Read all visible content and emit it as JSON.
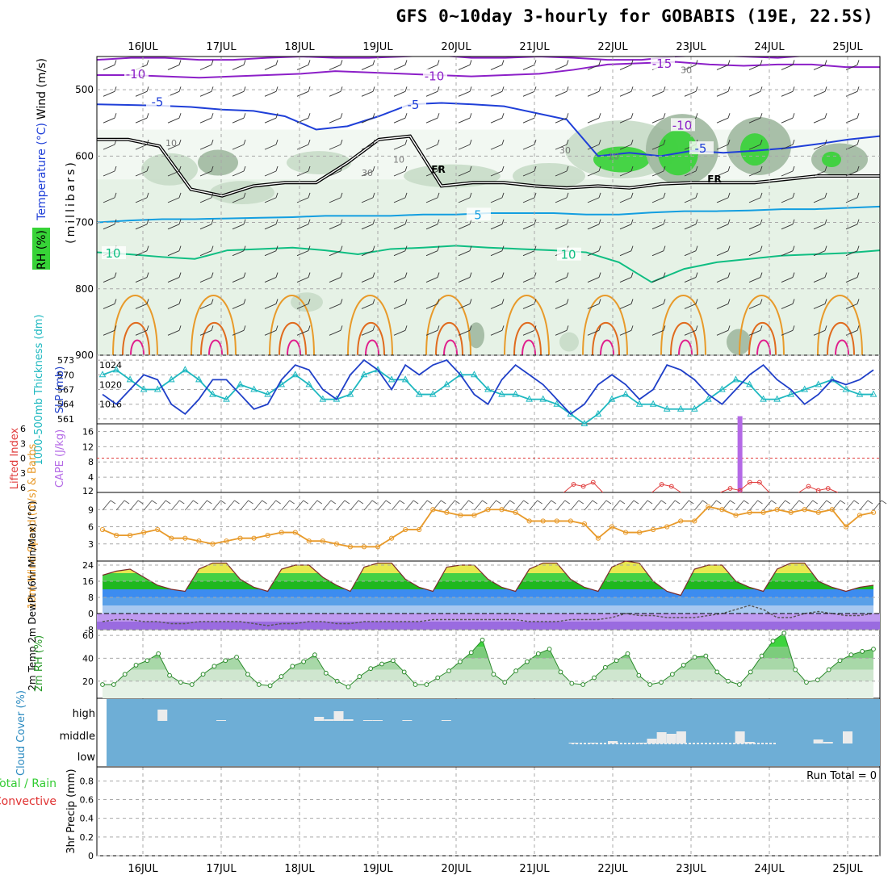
{
  "title": "GFS 0~10day 3-hourly for GOBABIS (19E, 22.5S)",
  "colors": {
    "grid": "#a8a8a8",
    "rh_light": "#e6f2e6",
    "rh_mid": "#c8dcc8",
    "rh_dark": "#a0b8a0",
    "rh_green": "#37d337",
    "temp_purple": "#8c1fc8",
    "temp_blue": "#1f3fd8",
    "temp_cyan": "#139ee0",
    "temp_teal": "#0fbe82",
    "temp_orange": "#e89a2a",
    "temp_dark_orange": "#e06b1e",
    "temp_pink": "#e01e8c",
    "freezing": "#000000",
    "slp": "#1f3fc8",
    "thickness": "#1fb8c0",
    "cape": "#b469e6",
    "lifted_index": "#e03c3c",
    "wind_speed": "#e89a2a",
    "cloud_bg": "#6eaed6",
    "cloud_bars": "#ececec",
    "precip_total": "#33cc33",
    "precip_conv": "#e03030"
  },
  "chart_data": [
    {
      "panel": "vertical-profile",
      "type": "heatmap",
      "x_labels": [
        "16JUL",
        "17JUL",
        "18JUL",
        "19JUL",
        "20JUL",
        "21JUL",
        "22JUL",
        "23JUL",
        "24JUL",
        "25JUL"
      ],
      "y_axis_label": "(millibars)",
      "y_ticks": [
        500,
        600,
        700,
        800,
        900
      ],
      "ylim": [
        450,
        900
      ],
      "legend_labels": [
        "Wind (m/s)",
        "Temperature (°C)",
        "RH (%)"
      ],
      "isotherm_labels": [
        "-15",
        "-10",
        "-10",
        "-10",
        "-5",
        "-5",
        "-5",
        "5",
        "10",
        "10"
      ],
      "rh_labels": [
        "30",
        "10",
        "30",
        "10",
        "10",
        "30"
      ],
      "freezing_labels": [
        "FR",
        "FR"
      ],
      "freezing_level": [
        575,
        575,
        585,
        650,
        660,
        645,
        640,
        640,
        610,
        575,
        570,
        645,
        640,
        640,
        645,
        648,
        645,
        648,
        642,
        640,
        640,
        640,
        635,
        630,
        630,
        630
      ]
    },
    {
      "panel": "slp-thickness",
      "type": "line",
      "y_left_label": "1000-500mb Thickness (dm)",
      "y_left_ticks": [
        561,
        564,
        567,
        570,
        573
      ],
      "y_right_label": "SLP (mb)",
      "y_right_ticks": [
        1016,
        1020,
        1024
      ],
      "series": [
        {
          "name": "SLP (mb)",
          "values": [
            1018,
            1016,
            1019,
            1022,
            1021,
            1016,
            1014,
            1017,
            1021,
            1021,
            1018,
            1015,
            1016,
            1021,
            1024,
            1023,
            1019,
            1017,
            1022,
            1025,
            1023,
            1019,
            1024,
            1022,
            1024,
            1025,
            1022,
            1018,
            1016,
            1021,
            1024,
            1022,
            1020,
            1017,
            1014,
            1016,
            1020,
            1022,
            1020,
            1017,
            1019,
            1024,
            1023,
            1021,
            1018,
            1016,
            1019,
            1022,
            1024,
            1021,
            1019,
            1016,
            1018,
            1021,
            1020,
            1021,
            1023
          ]
        },
        {
          "name": "1000-500mb Thickness (dm)",
          "values": [
            570,
            571,
            569,
            567,
            567,
            569,
            571,
            569,
            566,
            565,
            568,
            567,
            566,
            568,
            570,
            568,
            565,
            565,
            566,
            570,
            571,
            569,
            569,
            566,
            566,
            568,
            570,
            570,
            567,
            566,
            566,
            565,
            565,
            564,
            562,
            560,
            562,
            565,
            566,
            564,
            564,
            563,
            563,
            563,
            565,
            567,
            569,
            568,
            565,
            565,
            566,
            567,
            568,
            569,
            567,
            566,
            566
          ]
        }
      ]
    },
    {
      "panel": "cape-lifted-index",
      "type": "bar",
      "y_left_label": "Lifted Index",
      "y_left_ticks": [
        "6",
        "3",
        "0",
        "3",
        "6"
      ],
      "y_right_label": "CAPE (J/kg)",
      "y_right_ticks": [
        4,
        8,
        12,
        16
      ],
      "series": [
        {
          "name": "CAPE (J/kg)",
          "points": [
            {
              "x": "23JUL 15Z",
              "value": 20
            }
          ]
        },
        {
          "name": "Lifted Index",
          "points": [
            {
              "x": "21JUL 12Z",
              "value": 4
            },
            {
              "x": "21JUL 15Z",
              "value": 3
            },
            {
              "x": "21JUL 18Z",
              "value": 5
            },
            {
              "x": "22JUL 15Z",
              "value": 4
            },
            {
              "x": "22JUL 18Z",
              "value": 3
            },
            {
              "x": "23JUL 12Z",
              "value": 2
            },
            {
              "x": "23JUL 15Z",
              "value": 1
            },
            {
              "x": "23JUL 18Z",
              "value": 5
            },
            {
              "x": "23JUL 21Z",
              "value": 5
            },
            {
              "x": "24JUL 12Z",
              "value": 3
            },
            {
              "x": "24JUL 15Z",
              "value": 1
            },
            {
              "x": "24JUL 18Z",
              "value": 2
            }
          ]
        }
      ]
    },
    {
      "panel": "wind-10m",
      "type": "line",
      "y_left_label": "10m Wind Speed (m/s) & Barbs",
      "y_ticks": [
        3,
        6,
        9
      ],
      "series": [
        {
          "name": "10m Wind Speed",
          "values": [
            5.5,
            4.5,
            4.5,
            5,
            5.5,
            4,
            4,
            3.5,
            3,
            3.5,
            4,
            4,
            4.5,
            5,
            5,
            3.5,
            3.5,
            3,
            2.5,
            2.5,
            2.5,
            4,
            5.5,
            5.5,
            9,
            8.5,
            8,
            8,
            9,
            9,
            8.5,
            7,
            7,
            7,
            7,
            6.5,
            4,
            6,
            5,
            5,
            5.5,
            6,
            7,
            7,
            9.5,
            9,
            8,
            8.5,
            8.5,
            9,
            8.5,
            9,
            8.5,
            9,
            6,
            8,
            8.5
          ]
        }
      ]
    },
    {
      "panel": "temperature-2m",
      "type": "area",
      "y_left_label": "2m Temp 2m DewPt (6hr Min/Max) (°C)",
      "y_ticks": [
        -8,
        0,
        8,
        16,
        24
      ],
      "series": [
        {
          "name": "2m Temp",
          "values": [
            19,
            21,
            22,
            18,
            14,
            12,
            11,
            22,
            25,
            25,
            17,
            13,
            11,
            22,
            24,
            24,
            18,
            14,
            11,
            23,
            25,
            25,
            17,
            13,
            11,
            23,
            24,
            24,
            17,
            13,
            11,
            22,
            25,
            25,
            17,
            13,
            11,
            23,
            26,
            25,
            16,
            11,
            9,
            22,
            24,
            24,
            16,
            13,
            11,
            22,
            25,
            25,
            16,
            13,
            11,
            13,
            14
          ]
        },
        {
          "name": "2m DewPt",
          "values": [
            -4,
            -3,
            -3,
            -4,
            -4,
            -5,
            -5,
            -4,
            -4,
            -4,
            -4,
            -5,
            -6,
            -5,
            -5,
            -4,
            -4,
            -5,
            -5,
            -4,
            -4,
            -4,
            -4,
            -4,
            -3,
            -3,
            -3,
            -3,
            -3,
            -3,
            -3,
            -4,
            -4,
            -4,
            -3,
            -3,
            -3,
            -2,
            0,
            -1,
            -1,
            -2,
            -2,
            -2,
            -1,
            0,
            2,
            4,
            2,
            -2,
            -2,
            0,
            1,
            0,
            -1,
            -1,
            0
          ]
        }
      ]
    },
    {
      "panel": "rh-2m",
      "type": "area",
      "y_left_label": "2m RH (%)",
      "y_ticks": [
        20,
        40,
        60
      ],
      "series": [
        {
          "name": "2m RH",
          "values": [
            17,
            17,
            26,
            34,
            38,
            44,
            25,
            19,
            17,
            26,
            33,
            38,
            41,
            26,
            17,
            16,
            24,
            33,
            37,
            43,
            27,
            20,
            15,
            24,
            31,
            35,
            38,
            28,
            17,
            17,
            23,
            29,
            37,
            45,
            56,
            26,
            19,
            29,
            37,
            44,
            48,
            28,
            18,
            17,
            23,
            32,
            38,
            44,
            25,
            17,
            19,
            26,
            34,
            41,
            42,
            28,
            20,
            17,
            28,
            42,
            55,
            62,
            30,
            19,
            21,
            30,
            38,
            43,
            46,
            48
          ]
        }
      ]
    },
    {
      "panel": "cloud-cover",
      "type": "bar",
      "y_left_label": "Cloud Cover (%)",
      "layer_labels": [
        "high",
        "middle",
        "low"
      ],
      "series": [
        {
          "name": "high",
          "points": [
            {
              "x": "16JUL 06Z",
              "value": 70
            },
            {
              "x": "17JUL 00Z",
              "value": 5
            },
            {
              "x": "18JUL 06Z",
              "value": 25
            },
            {
              "x": "18JUL 09Z",
              "value": 10
            },
            {
              "x": "18JUL 12Z",
              "value": 60
            },
            {
              "x": "18JUL 15Z",
              "value": 10
            },
            {
              "x": "18JUL 21Z",
              "value": 5
            },
            {
              "x": "19JUL 00Z",
              "value": 5
            },
            {
              "x": "19JUL 09Z",
              "value": 5
            },
            {
              "x": "19JUL 21Z",
              "value": 5
            }
          ]
        },
        {
          "name": "middle",
          "points": [
            {
              "x": "21JUL 12Z",
              "value": 5
            },
            {
              "x": "21JUL 18Z",
              "value": 5
            },
            {
              "x": "22JUL 00Z",
              "value": 15
            },
            {
              "x": "22JUL 09Z",
              "value": 5
            },
            {
              "x": "22JUL 12Z",
              "value": 30
            },
            {
              "x": "22JUL 15Z",
              "value": 70
            },
            {
              "x": "22JUL 18Z",
              "value": 60
            },
            {
              "x": "22JUL 21Z",
              "value": 75
            },
            {
              "x": "23JUL 15Z",
              "value": 75
            },
            {
              "x": "23JUL 18Z",
              "value": 10
            },
            {
              "x": "24JUL 15Z",
              "value": 25
            },
            {
              "x": "24JUL 18Z",
              "value": 10
            },
            {
              "x": "25JUL 00Z",
              "value": 75
            }
          ]
        }
      ]
    },
    {
      "panel": "precip-3hr",
      "type": "bar",
      "y_left_label": "3hr Precip (mm)",
      "legend_labels": [
        "Total / Rain",
        "Convective"
      ],
      "y_ticks": [
        0,
        0.2,
        0.4,
        0.6,
        0.8
      ],
      "ylim": [
        0,
        0.95
      ],
      "run_total": "Run Total = 0",
      "values": []
    }
  ]
}
